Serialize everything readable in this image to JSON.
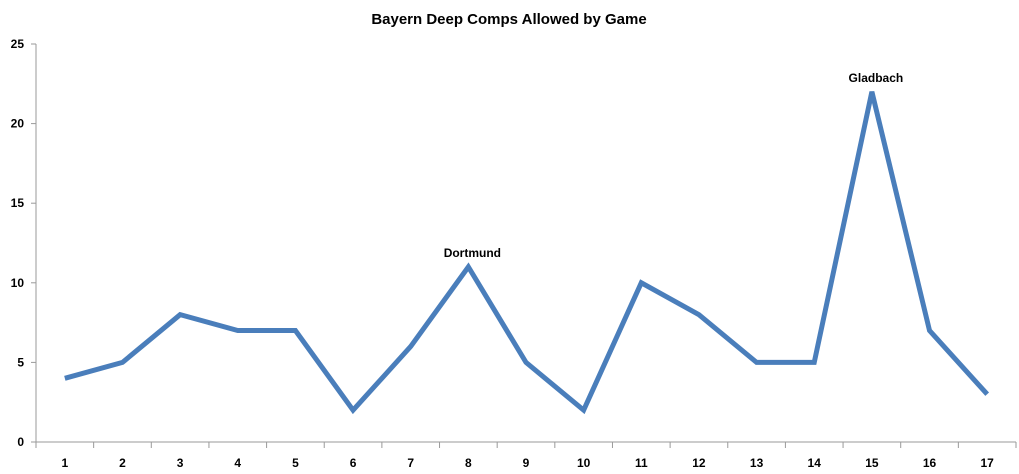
{
  "chart_data": {
    "type": "line",
    "title": "Bayern Deep Comps Allowed by Game",
    "xlabel": "",
    "ylabel": "",
    "categories": [
      "1",
      "2",
      "3",
      "4",
      "5",
      "6",
      "7",
      "8",
      "9",
      "10",
      "11",
      "12",
      "13",
      "14",
      "15",
      "16",
      "17"
    ],
    "series": [
      {
        "values": [
          4,
          5,
          8,
          7,
          7,
          2,
          6,
          11,
          5,
          2,
          10,
          8,
          5,
          5,
          22,
          7,
          3
        ]
      }
    ],
    "ylim": [
      0,
      25
    ],
    "yticks": [
      0,
      5,
      10,
      15,
      20,
      25
    ],
    "grid": false,
    "line_color": "#4a7ebb",
    "annotations": [
      {
        "category": "8",
        "text": "Dortmund"
      },
      {
        "category": "15",
        "text": "Gladbach"
      }
    ]
  }
}
